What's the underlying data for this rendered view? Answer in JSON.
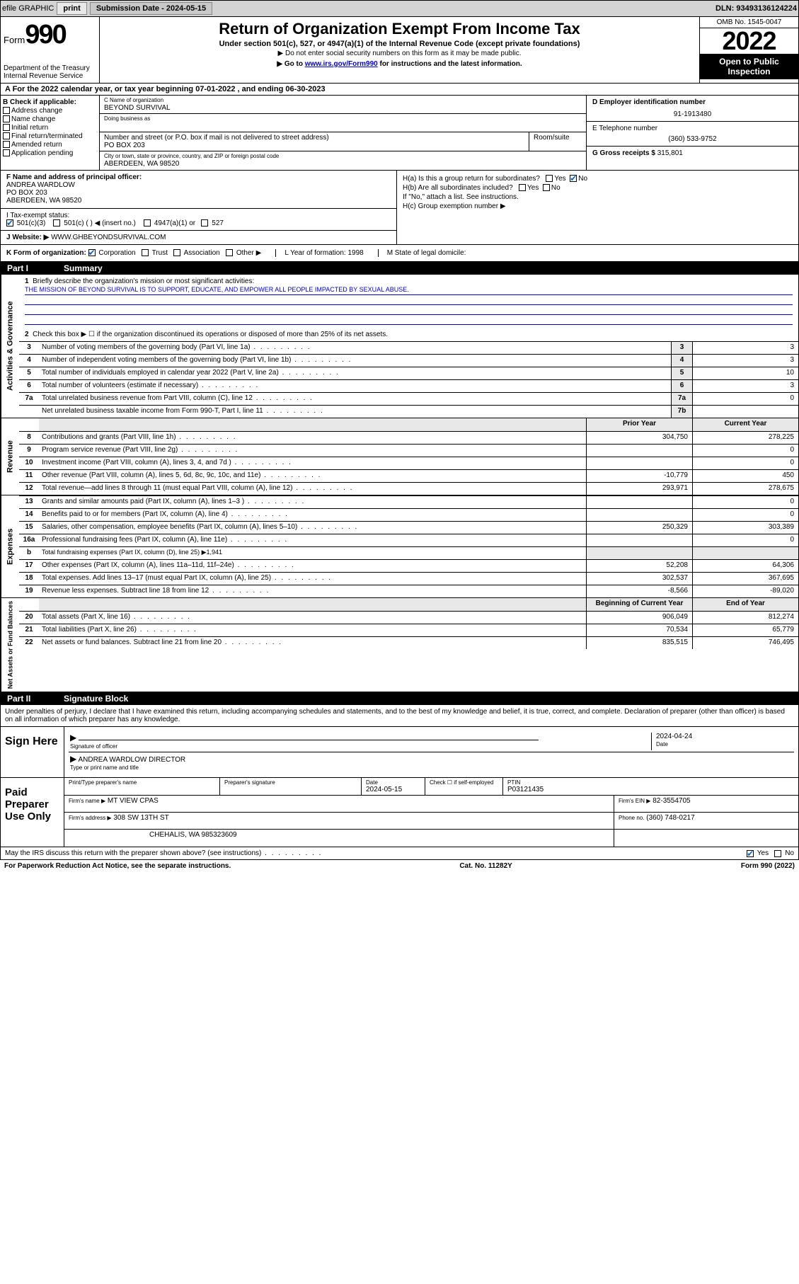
{
  "topbar": {
    "efile": "efile GRAPHIC",
    "print": "print",
    "sub_label": "Submission Date - 2024-05-15",
    "dln": "DLN: 93493136124224"
  },
  "header": {
    "form_word": "Form",
    "form_num": "990",
    "dept": "Department of the Treasury",
    "irs": "Internal Revenue Service",
    "title": "Return of Organization Exempt From Income Tax",
    "sub1": "Under section 501(c), 527, or 4947(a)(1) of the Internal Revenue Code (except private foundations)",
    "sub2": "▶ Do not enter social security numbers on this form as it may be made public.",
    "sub3_pre": "▶ Go to ",
    "sub3_link": "www.irs.gov/Form990",
    "sub3_post": " for instructions and the latest information.",
    "omb": "OMB No. 1545-0047",
    "year": "2022",
    "open": "Open to Public Inspection"
  },
  "row_a": "A For the 2022 calendar year, or tax year beginning 07-01-2022    , and ending 06-30-2023",
  "box_b": {
    "title": "B Check if applicable:",
    "items": [
      "Address change",
      "Name change",
      "Initial return",
      "Final return/terminated",
      "Amended return",
      "Application pending"
    ]
  },
  "box_c": {
    "name_lbl": "C Name of organization",
    "name": "BEYOND SURVIVAL",
    "dba_lbl": "Doing business as",
    "street_lbl": "Number and street (or P.O. box if mail is not delivered to street address)",
    "room_lbl": "Room/suite",
    "street": "PO BOX 203",
    "city_lbl": "City or town, state or province, country, and ZIP or foreign postal code",
    "city": "ABERDEEN, WA  98520"
  },
  "box_d": {
    "lbl": "D Employer identification number",
    "val": "91-1913480"
  },
  "box_e": {
    "lbl": "E Telephone number",
    "val": "(360) 533-9752"
  },
  "box_g": {
    "lbl": "G Gross receipts $",
    "val": "315,801"
  },
  "box_f": {
    "lbl": "F Name and address of principal officer:",
    "name": "ANDREA WARDLOW",
    "street": "PO BOX 203",
    "city": "ABERDEEN, WA  98520"
  },
  "box_h": {
    "a": "H(a)  Is this a group return for subordinates?",
    "a_yes": "Yes",
    "a_no": "No",
    "b": "H(b)  Are all subordinates included?",
    "b_note": "If \"No,\" attach a list. See instructions.",
    "c": "H(c)  Group exemption number ▶"
  },
  "box_i": {
    "lbl": "I      Tax-exempt status:",
    "o1": "501(c)(3)",
    "o2": "501(c) (   ) ◀ (insert no.)",
    "o3": "4947(a)(1) or",
    "o4": "527"
  },
  "box_j": {
    "lbl": "J     Website: ▶",
    "val": "WWW.GHBEYONDSURVIVAL.COM"
  },
  "box_k": {
    "lbl": "K Form of organization:",
    "o1": "Corporation",
    "o2": "Trust",
    "o3": "Association",
    "o4": "Other ▶",
    "l": "L Year of formation: 1998",
    "m": "M State of legal domicile:"
  },
  "part1": {
    "num": "Part I",
    "title": "Summary"
  },
  "summary": {
    "q1": "Briefly describe the organization's mission or most significant activities:",
    "mission": "THE MISSION OF BEYOND SURVIVAL IS TO SUPPORT, EDUCATE, AND EMPOWER ALL PEOPLE IMPACTED BY SEXUAL ABUSE.",
    "q2": "Check this box ▶ ☐  if the organization discontinued its operations or disposed of more than 25% of its net assets.",
    "rows_gov": [
      {
        "n": "3",
        "d": "Number of voting members of the governing body (Part VI, line 1a)",
        "c": "3",
        "v": "3"
      },
      {
        "n": "4",
        "d": "Number of independent voting members of the governing body (Part VI, line 1b)",
        "c": "4",
        "v": "3"
      },
      {
        "n": "5",
        "d": "Total number of individuals employed in calendar year 2022 (Part V, line 2a)",
        "c": "5",
        "v": "10"
      },
      {
        "n": "6",
        "d": "Total number of volunteers (estimate if necessary)",
        "c": "6",
        "v": "3"
      },
      {
        "n": "7a",
        "d": "Total unrelated business revenue from Part VIII, column (C), line 12",
        "c": "7a",
        "v": "0"
      },
      {
        "n": "",
        "d": "Net unrelated business taxable income from Form 990-T, Part I, line 11",
        "c": "7b",
        "v": ""
      }
    ],
    "hdr_prior": "Prior Year",
    "hdr_curr": "Current Year",
    "rows_rev": [
      {
        "n": "8",
        "d": "Contributions and grants (Part VIII, line 1h)",
        "p": "304,750",
        "c": "278,225"
      },
      {
        "n": "9",
        "d": "Program service revenue (Part VIII, line 2g)",
        "p": "",
        "c": "0"
      },
      {
        "n": "10",
        "d": "Investment income (Part VIII, column (A), lines 3, 4, and 7d )",
        "p": "",
        "c": "0"
      },
      {
        "n": "11",
        "d": "Other revenue (Part VIII, column (A), lines 5, 6d, 8c, 9c, 10c, and 11e)",
        "p": "-10,779",
        "c": "450"
      },
      {
        "n": "12",
        "d": "Total revenue—add lines 8 through 11 (must equal Part VIII, column (A), line 12)",
        "p": "293,971",
        "c": "278,675"
      }
    ],
    "rows_exp": [
      {
        "n": "13",
        "d": "Grants and similar amounts paid (Part IX, column (A), lines 1–3 )",
        "p": "",
        "c": "0"
      },
      {
        "n": "14",
        "d": "Benefits paid to or for members (Part IX, column (A), line 4)",
        "p": "",
        "c": "0"
      },
      {
        "n": "15",
        "d": "Salaries, other compensation, employee benefits (Part IX, column (A), lines 5–10)",
        "p": "250,329",
        "c": "303,389"
      },
      {
        "n": "16a",
        "d": "Professional fundraising fees (Part IX, column (A), line 11e)",
        "p": "",
        "c": "0"
      },
      {
        "n": "b",
        "d": "Total fundraising expenses (Part IX, column (D), line 25) ▶1,941",
        "p": "__",
        "c": "__"
      },
      {
        "n": "17",
        "d": "Other expenses (Part IX, column (A), lines 11a–11d, 11f–24e)",
        "p": "52,208",
        "c": "64,306"
      },
      {
        "n": "18",
        "d": "Total expenses. Add lines 13–17 (must equal Part IX, column (A), line 25)",
        "p": "302,537",
        "c": "367,695"
      },
      {
        "n": "19",
        "d": "Revenue less expenses. Subtract line 18 from line 12",
        "p": "-8,566",
        "c": "-89,020"
      }
    ],
    "hdr_beg": "Beginning of Current Year",
    "hdr_end": "End of Year",
    "rows_net": [
      {
        "n": "20",
        "d": "Total assets (Part X, line 16)",
        "p": "906,049",
        "c": "812,274"
      },
      {
        "n": "21",
        "d": "Total liabilities (Part X, line 26)",
        "p": "70,534",
        "c": "65,779"
      },
      {
        "n": "22",
        "d": "Net assets or fund balances. Subtract line 21 from line 20",
        "p": "835,515",
        "c": "746,495"
      }
    ]
  },
  "side_labels": {
    "gov": "Activities & Governance",
    "rev": "Revenue",
    "exp": "Expenses",
    "net": "Net Assets or Fund Balances"
  },
  "part2": {
    "num": "Part II",
    "title": "Signature Block"
  },
  "penalties": "Under penalties of perjury, I declare that I have examined this return, including accompanying schedules and statements, and to the best of my knowledge and belief, it is true, correct, and complete. Declaration of preparer (other than officer) is based on all information of which preparer has any knowledge.",
  "sign": {
    "here": "Sign Here",
    "sig_lbl": "Signature of officer",
    "date_lbl": "Date",
    "date": "2024-04-24",
    "name": "ANDREA WARDLOW DIRECTOR",
    "name_lbl": "Type or print name and title"
  },
  "prep": {
    "title": "Paid Preparer Use Only",
    "h1": "Print/Type preparer's name",
    "h2": "Preparer's signature",
    "h3_lbl": "Date",
    "h3": "2024-05-15",
    "h4": "Check ☐ if self-employed",
    "h5_lbl": "PTIN",
    "h5": "P03121435",
    "firm_lbl": "Firm's name    ▶",
    "firm": "MT VIEW CPAS",
    "ein_lbl": "Firm's EIN ▶",
    "ein": "82-3554705",
    "addr_lbl": "Firm's address ▶",
    "addr1": "308 SW 13TH ST",
    "addr2": "CHEHALIS, WA  985323609",
    "phone_lbl": "Phone no.",
    "phone": "(360) 748-0217"
  },
  "bottom": {
    "q": "May the IRS discuss this return with the preparer shown above? (see instructions)",
    "yes": "Yes",
    "no": "No"
  },
  "footer": {
    "l": "For Paperwork Reduction Act Notice, see the separate instructions.",
    "m": "Cat. No. 11282Y",
    "r": "Form 990 (2022)"
  }
}
